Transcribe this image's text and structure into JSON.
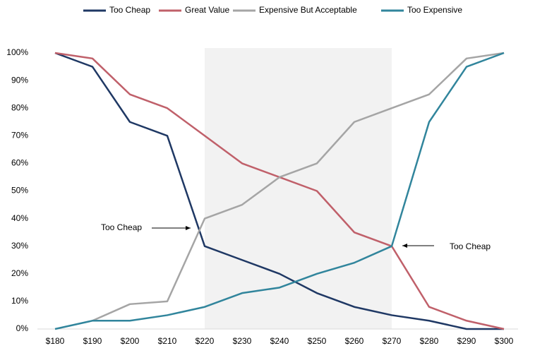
{
  "chart_data": {
    "type": "line",
    "categories": [
      "$180",
      "$190",
      "$200",
      "$210",
      "$220",
      "$230",
      "$240",
      "$250",
      "$260",
      "$270",
      "$280",
      "$290",
      "$300"
    ],
    "series": [
      {
        "name": "Too Cheap",
        "color": "#1f3864",
        "values": [
          100,
          95,
          75,
          70,
          30,
          25,
          20,
          13,
          8,
          5,
          3,
          0,
          0
        ]
      },
      {
        "name": "Great Value",
        "color": "#c0606a",
        "values": [
          100,
          98,
          85,
          80,
          70,
          60,
          55,
          50,
          35,
          30,
          8,
          3,
          0
        ]
      },
      {
        "name": "Expensive But Acceptable",
        "color": "#a5a5a5",
        "values": [
          null,
          3,
          9,
          10,
          40,
          45,
          55,
          60,
          75,
          80,
          85,
          98,
          100
        ]
      },
      {
        "name": "Too Expensive",
        "color": "#31859c",
        "values": [
          0,
          3,
          3,
          5,
          8,
          13,
          15,
          20,
          24,
          30,
          75,
          95,
          100
        ]
      }
    ],
    "ylim": [
      0,
      100
    ],
    "yticks": [
      {
        "value": 0,
        "label": "0%"
      },
      {
        "value": 10,
        "label": "10%"
      },
      {
        "value": 20,
        "label": "20%"
      },
      {
        "value": 30,
        "label": "30%"
      },
      {
        "value": 40,
        "label": "40%"
      },
      {
        "value": 50,
        "label": "50%"
      },
      {
        "value": 60,
        "label": "60%"
      },
      {
        "value": 70,
        "label": "70%"
      },
      {
        "value": 80,
        "label": "80%"
      },
      {
        "value": 90,
        "label": "90%"
      },
      {
        "value": 100,
        "label": "100%"
      }
    ],
    "highlight": {
      "from": "$220",
      "to": "$270",
      "color": "#f2f2f2"
    },
    "annotations": [
      "Too Cheap",
      "Too Cheap"
    ],
    "legend": "top",
    "grid": false
  }
}
